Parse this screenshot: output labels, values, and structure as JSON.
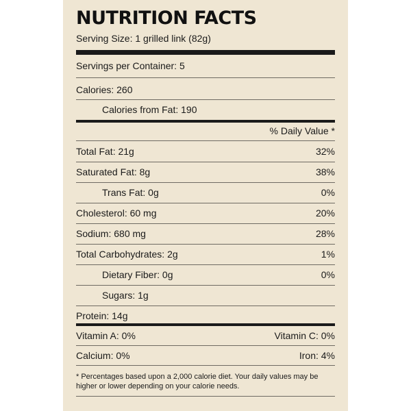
{
  "title": "NUTRITION FACTS",
  "serving_size": "Serving Size: 1 grilled link (82g)",
  "servings_per_container": "Servings per Container: 5",
  "calories": "Calories: 260",
  "calories_from_fat": "Calories from Fat:  190",
  "daily_value_header": "% Daily Value *",
  "nutrients": [
    {
      "label": "Total Fat:  21g",
      "dv": "32%"
    },
    {
      "label": "Saturated Fat:  8g",
      "dv": "38%"
    },
    {
      "label": "Trans Fat:  0g",
      "dv": "0%"
    },
    {
      "label": "Cholesterol:  60 mg",
      "dv": "20%"
    },
    {
      "label": "Sodium:  680 mg",
      "dv": "28%"
    },
    {
      "label": "Total Carbohydrates:  2g",
      "dv": "1%"
    },
    {
      "label": "Dietary Fiber:  0g",
      "dv": "0%"
    },
    {
      "label": "Sugars:  1g",
      "dv": ""
    },
    {
      "label": "Protein:  14g",
      "dv": ""
    }
  ],
  "vitamins": [
    {
      "left": "Vitamin A:  0%",
      "right": "Vitamin C:  0%"
    },
    {
      "left": "Calcium:  0%",
      "right": "Iron:  4%"
    }
  ],
  "footnote": "* Percentages based upon a 2,000 calorie diet. Your daily values may be higher or lower depending on your calorie needs."
}
